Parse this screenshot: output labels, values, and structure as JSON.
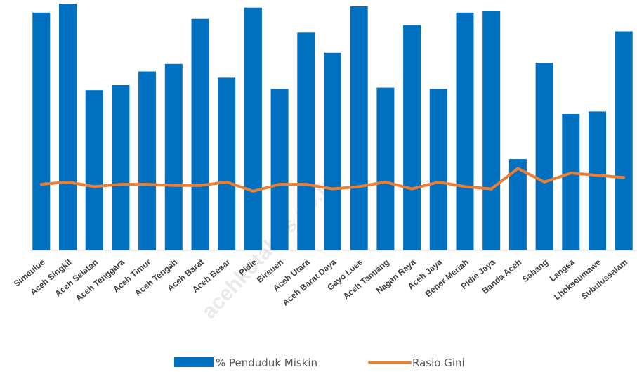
{
  "chart_data": {
    "type": "bar",
    "categories": [
      "Simeulue",
      "Aceh Singkil",
      "Aceh Selatan",
      "Aceh Tenggara",
      "Aceh Timur",
      "Aceh Tengah",
      "Aceh Barat",
      "Aceh Besar",
      "Pidie",
      "Bireuen",
      "Aceh Utara",
      "Aceh Barat Daya",
      "Gayo Lues",
      "Aceh Tamiang",
      "Nagan Raya",
      "Aceh Jaya",
      "Bener Meriah",
      "Pidie Jaya",
      "Banda Aceh",
      "Sabang",
      "Langsa",
      "Lhokseumawe",
      "Subulussalam"
    ],
    "series": [
      {
        "name": "% Penduduk Miskin",
        "type": "bar",
        "color": "#0070C0",
        "values": [
          19.0,
          19.7,
          12.8,
          13.2,
          14.3,
          14.9,
          18.5,
          13.8,
          19.4,
          12.9,
          17.4,
          15.8,
          19.5,
          13.0,
          18.0,
          12.9,
          19.0,
          19.1,
          7.3,
          15.0,
          10.9,
          11.1,
          17.5
        ]
      },
      {
        "name": "Rasio Gini",
        "type": "line",
        "color": "#ED7D31",
        "values": [
          0.29,
          0.3,
          0.28,
          0.29,
          0.29,
          0.285,
          0.285,
          0.3,
          0.26,
          0.29,
          0.29,
          0.27,
          0.28,
          0.3,
          0.27,
          0.3,
          0.28,
          0.27,
          0.36,
          0.3,
          0.34,
          0.33,
          0.32
        ]
      }
    ],
    "ylim_bar": [
      0,
      20
    ],
    "ylim_line": [
      0,
      1.1
    ],
    "legend_position": "bottom",
    "grid": false
  },
  "legend": {
    "bar_label": "% Penduduk Miskin",
    "line_label": "Rasio Gini"
  },
  "watermark": "acehkotabps.go.id"
}
